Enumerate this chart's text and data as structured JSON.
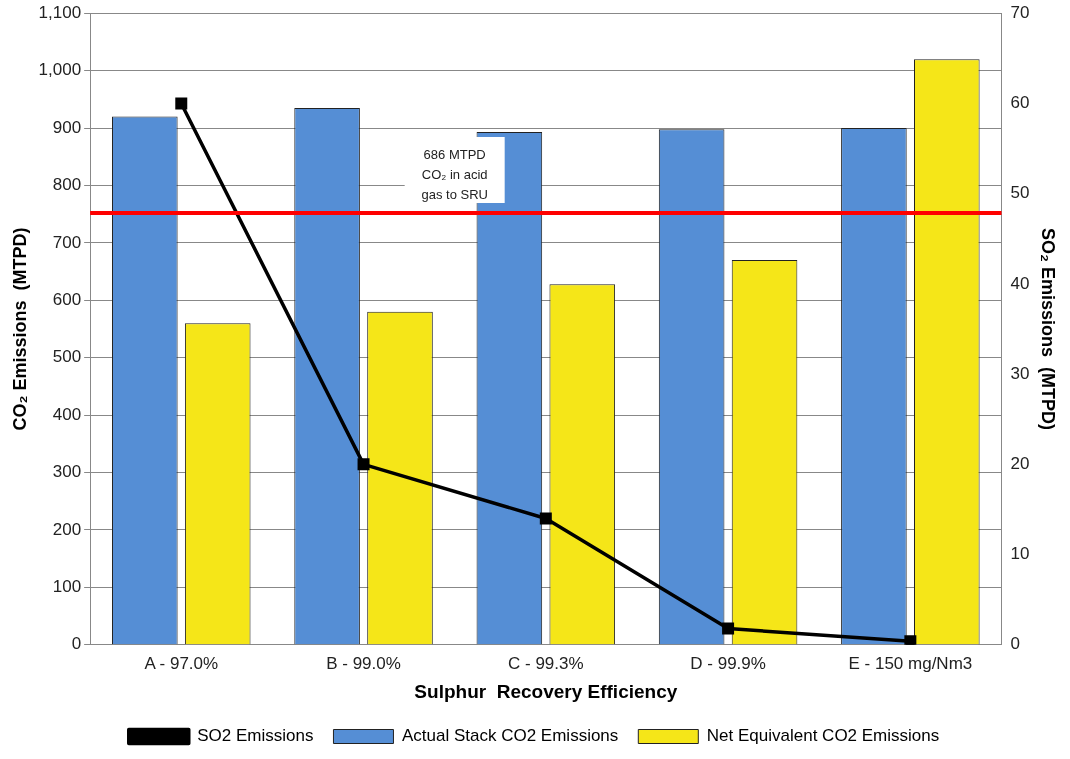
{
  "chart_data": {
    "type": "bar",
    "xlabel": "Sulphur  Recovery Efficiency",
    "ylabel": "CO₂ Emissions  (MTPD)",
    "y2label": "SO₂ Emissions  (MTPD)",
    "categories": [
      "A - 97.0%",
      "B - 99.0%",
      "C - 99.3%",
      "D - 99.9%",
      "E - 150 mg/Nm3"
    ],
    "series": [
      {
        "name": "Actual Stack CO2 Emissions",
        "color": "#558ed5",
        "values": [
          920,
          935,
          893,
          898,
          900
        ]
      },
      {
        "name": "Net Equivalent CO2 Emissions",
        "color": "#f5e618",
        "values": [
          560,
          580,
          628,
          670,
          1020
        ]
      },
      {
        "name": "SO2 Emissions",
        "type": "line",
        "axis": "y2",
        "color": "#000000",
        "values": [
          60,
          20,
          14,
          1.8,
          0.4
        ]
      }
    ],
    "ylim": [
      0,
      1100
    ],
    "yticks": [
      0,
      100,
      200,
      300,
      400,
      500,
      600,
      700,
      800,
      900,
      {
        "value": 1000,
        "label": "1,000"
      },
      {
        "value": 1100,
        "label": "1,100"
      }
    ],
    "y2lim": [
      0,
      70
    ],
    "y2ticks": [
      0,
      10,
      20,
      30,
      40,
      50,
      60,
      70
    ],
    "ref_lines": [
      {
        "axis": "y",
        "value": 752,
        "label": "686 MTPD CO₂ in acid gas to SRU",
        "color": "#ff0000"
      }
    ],
    "grid": "y",
    "legend": "bottom",
    "marker": "square",
    "line_style": "solid"
  }
}
